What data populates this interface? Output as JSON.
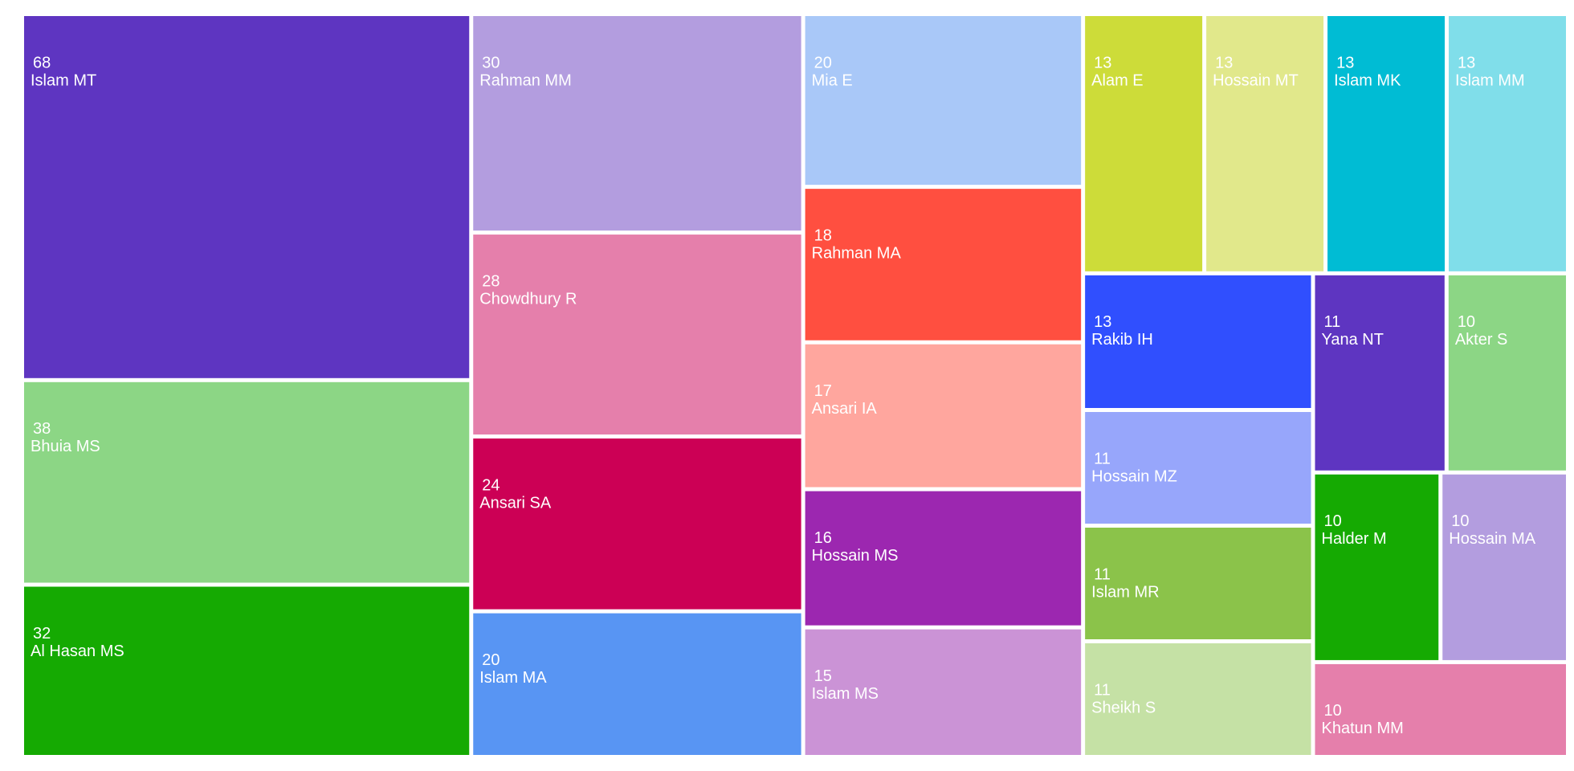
{
  "chart_data": {
    "type": "treemap",
    "categories": [
      "Islam MT",
      "Bhuia MS",
      "Al Hasan MS",
      "Rahman MM",
      "Chowdhury R",
      "Ansari SA",
      "Islam MA",
      "Mia E",
      "Rahman MA",
      "Ansari IA",
      "Hossain MS",
      "Islam MS",
      "Alam E",
      "Hossain MT",
      "Islam MK",
      "Islam MM",
      "Rakib IH",
      "Hossain MZ",
      "Islam MR",
      "Sheikh S",
      "Yana NT",
      "Akter S",
      "Halder M",
      "Hossain MA",
      "Khatun MM"
    ],
    "values": [
      68,
      38,
      32,
      30,
      28,
      24,
      20,
      20,
      18,
      17,
      16,
      15,
      13,
      13,
      13,
      13,
      13,
      11,
      11,
      11,
      11,
      10,
      10,
      10,
      10
    ],
    "colors": [
      "#5e35c1",
      "#8cd685",
      "#15aa02",
      "#b39ddf",
      "#e57fab",
      "#cc0055",
      "#5895f3",
      "#a9c8f8",
      "#ff4f40",
      "#ffa69e",
      "#9c27b0",
      "#cb93d6",
      "#cddc39",
      "#e1e88b",
      "#00bcd4",
      "#80deea",
      "#304ffe",
      "#97a6fb",
      "#8bc34a",
      "#c5e1a5",
      "#5e35c1",
      "#8cd685",
      "#15aa02",
      "#b39ddf",
      "#e57fab"
    ]
  }
}
